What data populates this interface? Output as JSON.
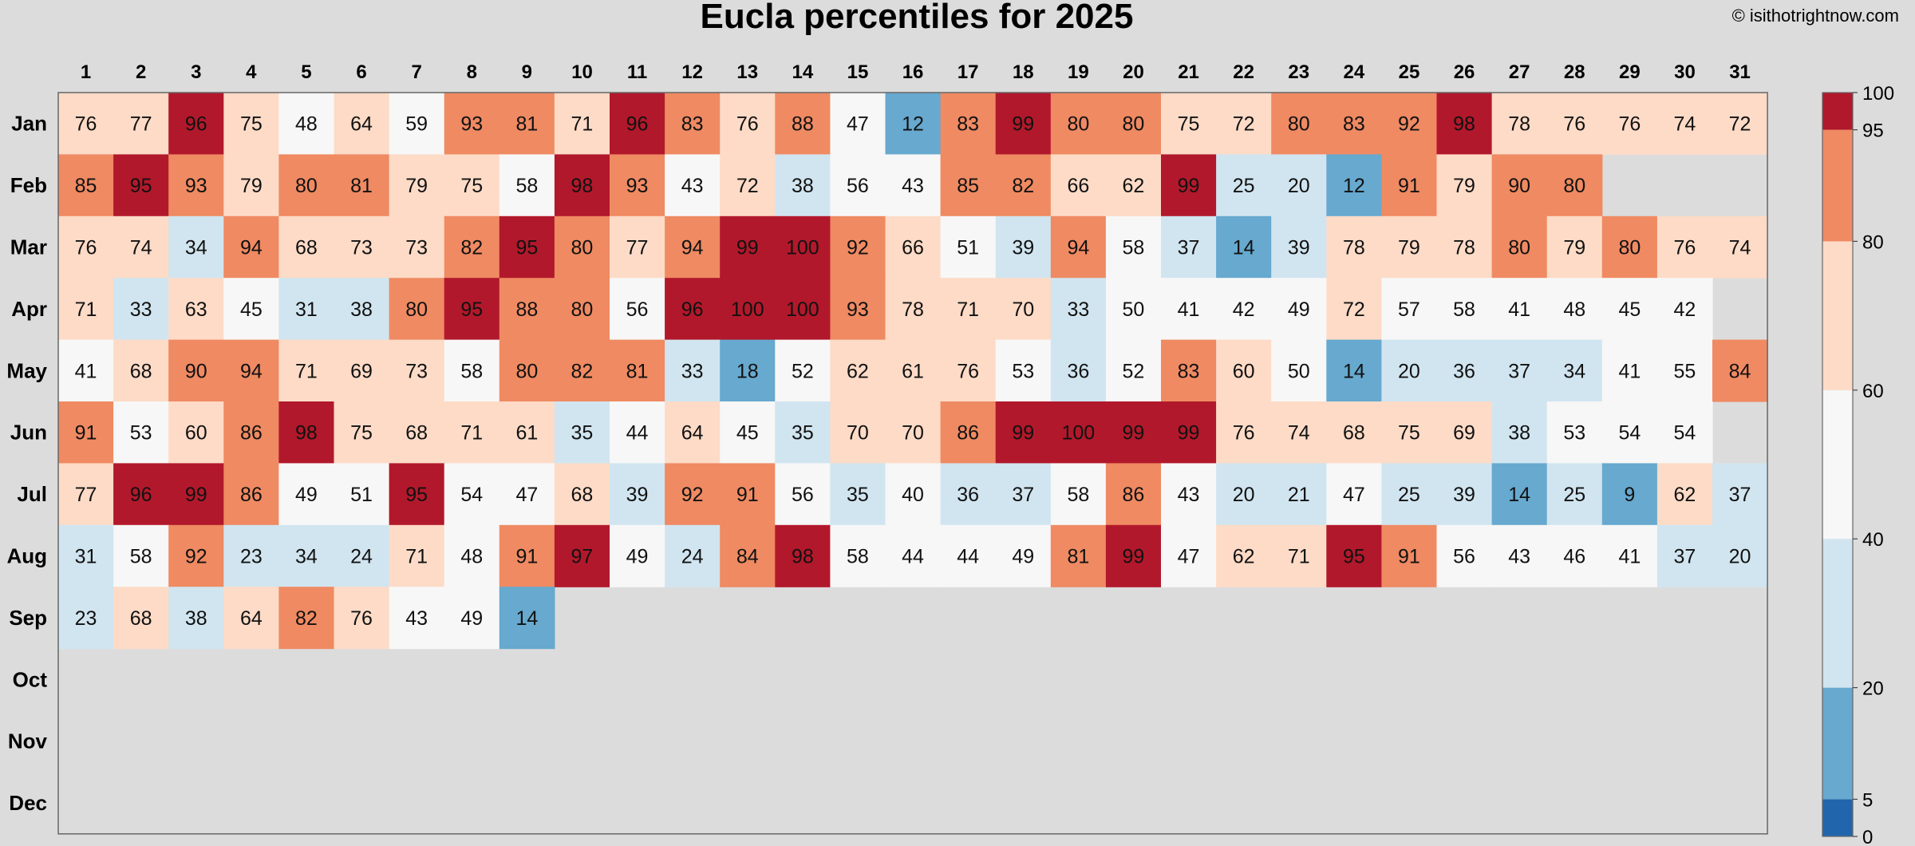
{
  "chart_data": {
    "type": "heatmap",
    "title": "Eucla percentiles for 2025",
    "credit": "© isithotrightnow.com",
    "x_labels": [
      "1",
      "2",
      "3",
      "4",
      "5",
      "6",
      "7",
      "8",
      "9",
      "10",
      "11",
      "12",
      "13",
      "14",
      "15",
      "16",
      "17",
      "18",
      "19",
      "20",
      "21",
      "22",
      "23",
      "24",
      "25",
      "26",
      "27",
      "28",
      "29",
      "30",
      "31"
    ],
    "y_labels": [
      "Jan",
      "Feb",
      "Mar",
      "Apr",
      "May",
      "Jun",
      "Jul",
      "Aug",
      "Sep",
      "Oct",
      "Nov",
      "Dec"
    ],
    "values": [
      [
        76,
        77,
        96,
        75,
        48,
        64,
        59,
        93,
        81,
        71,
        96,
        83,
        76,
        88,
        47,
        12,
        83,
        99,
        80,
        80,
        75,
        72,
        80,
        83,
        92,
        98,
        78,
        76,
        76,
        74,
        72
      ],
      [
        85,
        95,
        93,
        79,
        80,
        81,
        79,
        75,
        58,
        98,
        93,
        43,
        72,
        38,
        56,
        43,
        85,
        82,
        66,
        62,
        99,
        25,
        20,
        12,
        91,
        79,
        90,
        80
      ],
      [
        76,
        74,
        34,
        94,
        68,
        73,
        73,
        82,
        95,
        80,
        77,
        94,
        99,
        100,
        92,
        66,
        51,
        39,
        94,
        58,
        37,
        14,
        39,
        78,
        79,
        78,
        80,
        79,
        80,
        76,
        74
      ],
      [
        71,
        33,
        63,
        45,
        31,
        38,
        80,
        95,
        88,
        80,
        56,
        96,
        100,
        100,
        93,
        78,
        71,
        70,
        33,
        50,
        41,
        42,
        49,
        72,
        57,
        58,
        41,
        48,
        45,
        42
      ],
      [
        41,
        68,
        90,
        94,
        71,
        69,
        73,
        58,
        80,
        82,
        81,
        33,
        18,
        52,
        62,
        61,
        76,
        53,
        36,
        52,
        83,
        60,
        50,
        14,
        20,
        36,
        37,
        34,
        41,
        55,
        84
      ],
      [
        91,
        53,
        60,
        86,
        98,
        75,
        68,
        71,
        61,
        35,
        44,
        64,
        45,
        35,
        70,
        70,
        86,
        99,
        100,
        99,
        99,
        76,
        74,
        68,
        75,
        69,
        38,
        53,
        54,
        54
      ],
      [
        77,
        96,
        99,
        86,
        49,
        51,
        95,
        54,
        47,
        68,
        39,
        92,
        91,
        56,
        35,
        40,
        36,
        37,
        58,
        86,
        43,
        20,
        21,
        47,
        25,
        39,
        14,
        25,
        9,
        62,
        37
      ],
      [
        31,
        58,
        92,
        23,
        34,
        24,
        71,
        48,
        91,
        97,
        49,
        24,
        84,
        98,
        58,
        44,
        44,
        49,
        81,
        99,
        47,
        62,
        71,
        95,
        91,
        56,
        43,
        46,
        41,
        37,
        20
      ],
      [
        23,
        68,
        38,
        64,
        82,
        76,
        43,
        49,
        14
      ],
      [],
      [],
      []
    ],
    "colorbar": {
      "bands": [
        {
          "from": 0,
          "to": 5,
          "color": "#2166ac"
        },
        {
          "from": 5,
          "to": 20,
          "color": "#67a9cf"
        },
        {
          "from": 20,
          "to": 40,
          "color": "#d1e5f0"
        },
        {
          "from": 40,
          "to": 60,
          "color": "#f7f7f7"
        },
        {
          "from": 60,
          "to": 80,
          "color": "#fddbc7"
        },
        {
          "from": 80,
          "to": 95,
          "color": "#ef8a62"
        },
        {
          "from": 95,
          "to": 100,
          "color": "#b2182b"
        }
      ],
      "ticks": [
        "0",
        "5",
        "20",
        "40",
        "60",
        "80",
        "95",
        "100"
      ]
    },
    "empty_color": "#dcdcdc",
    "grid": false
  }
}
